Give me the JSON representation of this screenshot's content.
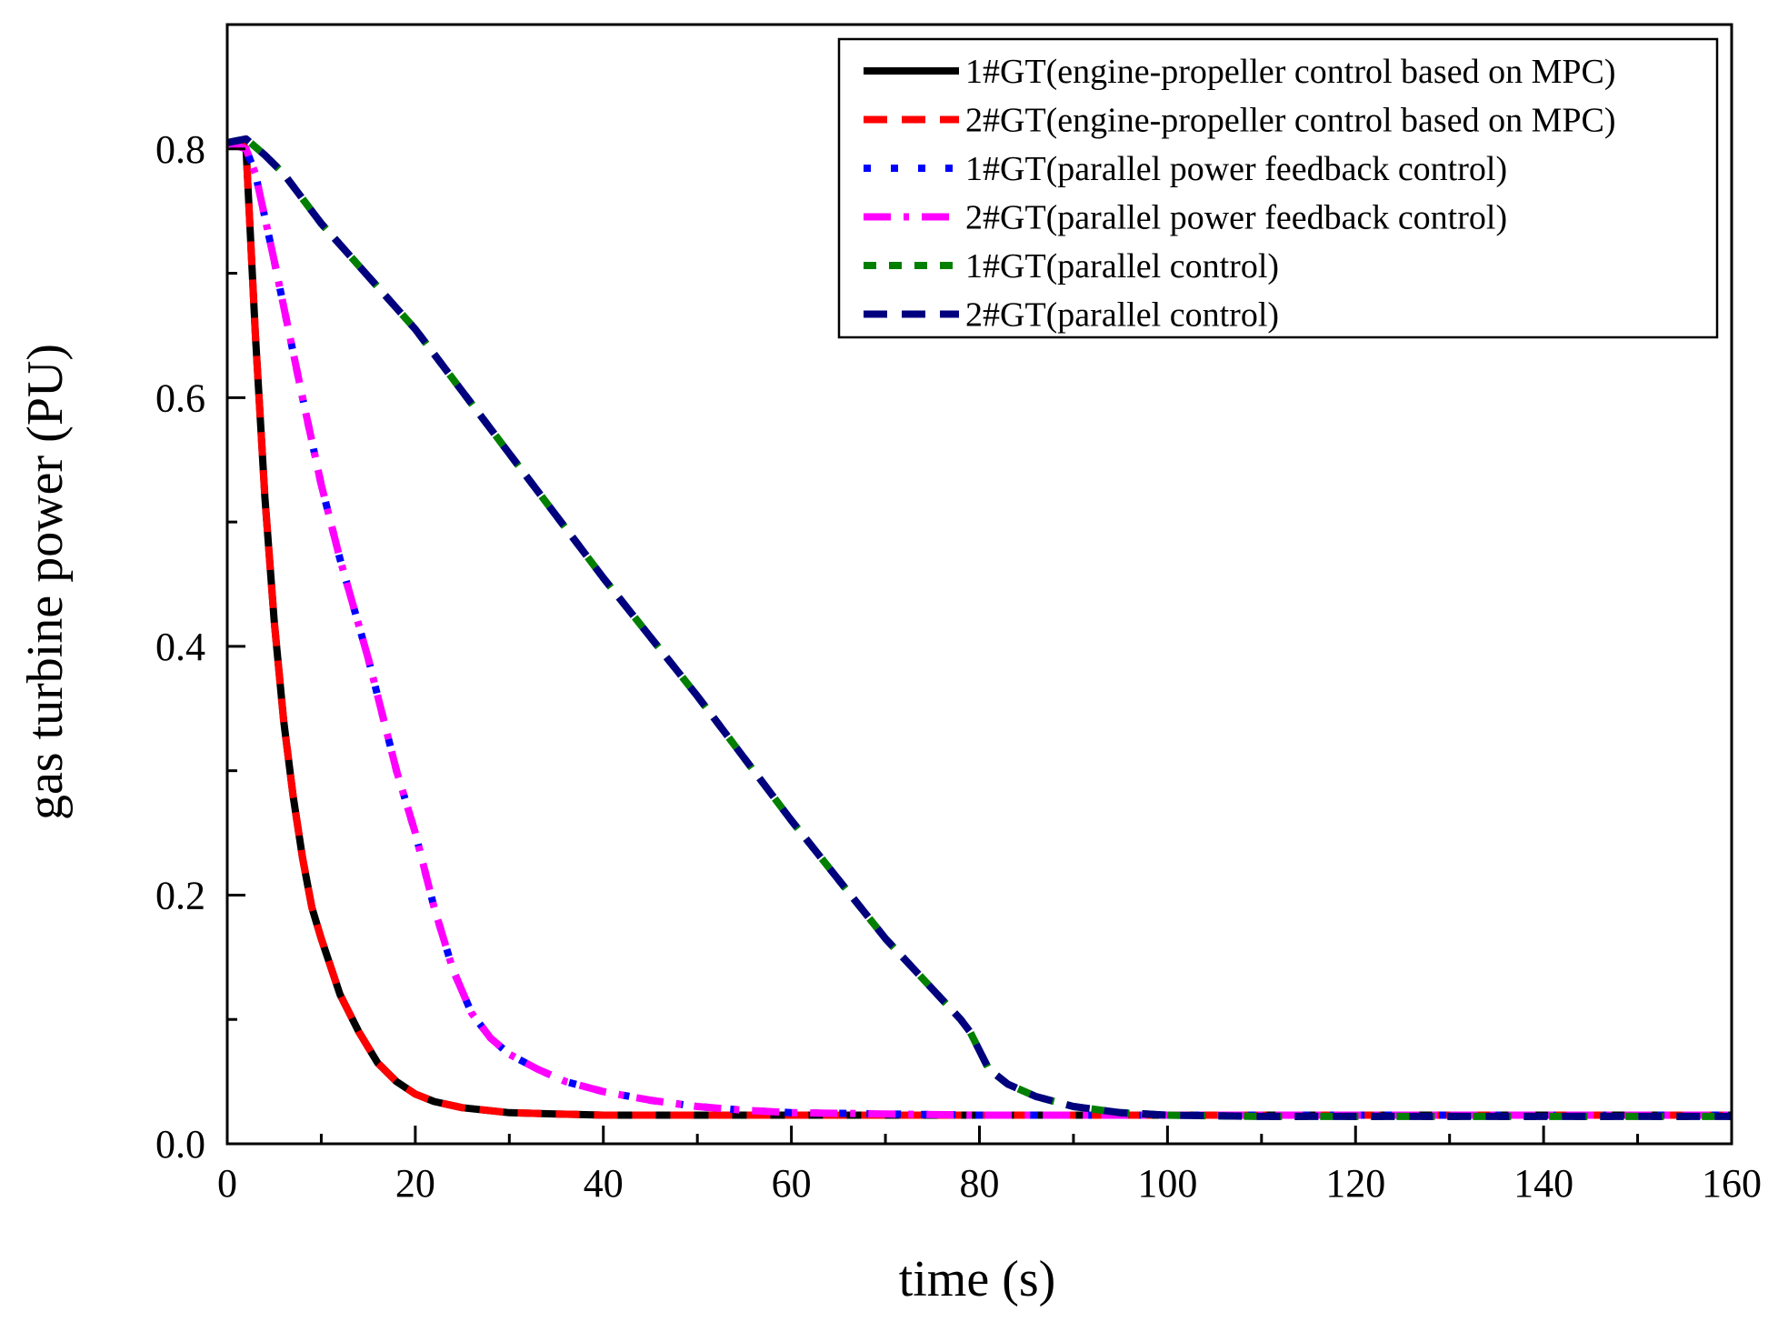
{
  "chart_data": {
    "type": "line",
    "title": "",
    "xlabel": "time (s)",
    "ylabel": "gas turbine power (PU)",
    "xlim": [
      0,
      160
    ],
    "ylim": [
      0,
      0.9
    ],
    "x_ticks": [
      0,
      20,
      40,
      60,
      80,
      100,
      120,
      140,
      160
    ],
    "x_tick_labels": [
      "0",
      "20",
      "40",
      "60",
      "80",
      "100",
      "120",
      "140",
      "160"
    ],
    "y_ticks": [
      0.0,
      0.2,
      0.4,
      0.6,
      0.8
    ],
    "y_tick_labels": [
      "0.0",
      "0.2",
      "0.4",
      "0.6",
      "0.8"
    ],
    "grid": false,
    "legend_position": "top-right",
    "series": [
      {
        "name": "1#GT(engine-propeller control based on MPC)",
        "color": "#000000",
        "style": "solid",
        "x": [
          0,
          1.5,
          2,
          3,
          4,
          5,
          6,
          7,
          8,
          9,
          10,
          12,
          14,
          16,
          18,
          20,
          22,
          25,
          30,
          35,
          40,
          50,
          60,
          70,
          80,
          100,
          120,
          140,
          160
        ],
        "y": [
          0.805,
          0.805,
          0.8,
          0.65,
          0.52,
          0.42,
          0.34,
          0.28,
          0.23,
          0.19,
          0.165,
          0.12,
          0.09,
          0.065,
          0.05,
          0.04,
          0.034,
          0.029,
          0.025,
          0.024,
          0.023,
          0.023,
          0.023,
          0.023,
          0.023,
          0.023,
          0.023,
          0.023,
          0.023
        ]
      },
      {
        "name": "2#GT(engine-propeller control based on MPC)",
        "color": "#ff0000",
        "style": "dash",
        "x": [
          0,
          1.5,
          2,
          3,
          4,
          5,
          6,
          7,
          8,
          9,
          10,
          12,
          14,
          16,
          18,
          20,
          22,
          25,
          30,
          35,
          40,
          50,
          60,
          70,
          80,
          100,
          120,
          140,
          160
        ],
        "y": [
          0.805,
          0.805,
          0.8,
          0.65,
          0.52,
          0.42,
          0.34,
          0.28,
          0.23,
          0.19,
          0.165,
          0.12,
          0.09,
          0.065,
          0.05,
          0.04,
          0.034,
          0.029,
          0.025,
          0.024,
          0.023,
          0.023,
          0.023,
          0.023,
          0.023,
          0.023,
          0.023,
          0.023,
          0.023
        ]
      },
      {
        "name": "1#GT(parallel power feedback control)",
        "color": "#0000ff",
        "style": "dot",
        "x": [
          0,
          2,
          3,
          5,
          8,
          10,
          12,
          15,
          18,
          20,
          22,
          24,
          26,
          28,
          30,
          33,
          36,
          40,
          45,
          50,
          55,
          60,
          70,
          80,
          100,
          120,
          140,
          160
        ],
        "y": [
          0.805,
          0.8,
          0.78,
          0.71,
          0.6,
          0.53,
          0.47,
          0.39,
          0.3,
          0.25,
          0.19,
          0.14,
          0.105,
          0.085,
          0.072,
          0.06,
          0.05,
          0.042,
          0.035,
          0.03,
          0.027,
          0.025,
          0.024,
          0.023,
          0.023,
          0.023,
          0.023,
          0.023
        ]
      },
      {
        "name": "2#GT(parallel power feedback control)",
        "color": "#ff00ff",
        "style": "dashdot",
        "x": [
          0,
          2,
          3,
          5,
          8,
          10,
          12,
          15,
          18,
          20,
          22,
          24,
          26,
          28,
          30,
          33,
          36,
          40,
          45,
          50,
          55,
          60,
          70,
          80,
          100,
          120,
          140,
          160
        ],
        "y": [
          0.805,
          0.8,
          0.78,
          0.71,
          0.6,
          0.53,
          0.47,
          0.39,
          0.3,
          0.25,
          0.19,
          0.14,
          0.105,
          0.085,
          0.072,
          0.06,
          0.05,
          0.042,
          0.035,
          0.03,
          0.027,
          0.025,
          0.024,
          0.023,
          0.023,
          0.023,
          0.023,
          0.023
        ]
      },
      {
        "name": "1#GT(parallel control)",
        "color": "#007f00",
        "style": "shortdash",
        "x": [
          0,
          2,
          4,
          6,
          10,
          20,
          30,
          40,
          50,
          60,
          70,
          78,
          79,
          80,
          81,
          83,
          86,
          90,
          95,
          100,
          110,
          120,
          140,
          160
        ],
        "y": [
          0.805,
          0.808,
          0.795,
          0.78,
          0.74,
          0.655,
          0.555,
          0.455,
          0.36,
          0.26,
          0.165,
          0.1,
          0.09,
          0.075,
          0.06,
          0.048,
          0.038,
          0.03,
          0.025,
          0.023,
          0.022,
          0.022,
          0.022,
          0.022
        ]
      },
      {
        "name": "2#GT(parallel control)",
        "color": "#00007f",
        "style": "dash",
        "x": [
          0,
          2,
          4,
          6,
          10,
          20,
          30,
          40,
          50,
          60,
          70,
          78,
          79,
          80,
          81,
          83,
          86,
          90,
          95,
          100,
          110,
          120,
          140,
          160
        ],
        "y": [
          0.805,
          0.808,
          0.795,
          0.78,
          0.74,
          0.655,
          0.555,
          0.455,
          0.36,
          0.26,
          0.165,
          0.1,
          0.09,
          0.075,
          0.06,
          0.048,
          0.038,
          0.03,
          0.025,
          0.023,
          0.022,
          0.022,
          0.022,
          0.022
        ]
      }
    ]
  }
}
